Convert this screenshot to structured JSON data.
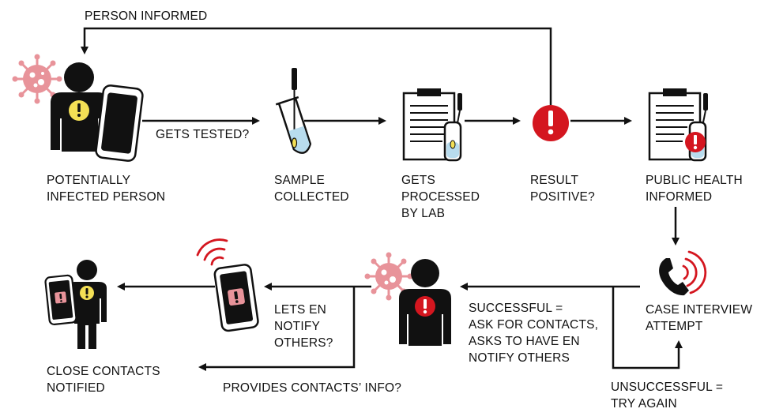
{
  "colors": {
    "line": "#111111",
    "virus": "#e8939a",
    "alert_red": "#d4161f",
    "alert_yellow": "#f3df55",
    "tube_liquid": "#b8dcee"
  },
  "flow_labels": {
    "person_informed": "PERSON INFORMED",
    "gets_tested": "GETS TESTED?",
    "provides_contacts": "PROVIDES CONTACTS’ INFO?",
    "unsuccessful": [
      "UNSUCCESSFUL =",
      "TRY AGAIN"
    ]
  },
  "nodes": {
    "infected_person": {
      "label": [
        "POTENTIALLY",
        "INFECTED PERSON"
      ],
      "icon": "infected-person-with-phone-icon"
    },
    "sample_collected": {
      "label": [
        "SAMPLE",
        "COLLECTED"
      ],
      "icon": "test-tube-swab-icon"
    },
    "lab_processing": {
      "label": [
        "GETS",
        "PROCESSED",
        "BY LAB"
      ],
      "icon": "clipboard-test-tube-icon"
    },
    "result_positive": {
      "label": [
        "RESULT",
        "POSITIVE?"
      ],
      "icon": "red-alert-icon"
    },
    "public_health": {
      "label": [
        "PUBLIC HEALTH",
        "INFORMED"
      ],
      "icon": "clipboard-alert-icon"
    },
    "case_interview": {
      "label": [
        "CASE INTERVIEW",
        "ATTEMPT"
      ],
      "icon": "phone-ringing-icon"
    },
    "successful": {
      "label": [
        "SUCCESSFUL =",
        "ASK FOR CONTACTS,",
        "ASKS TO HAVE EN",
        "NOTIFY OTHERS"
      ],
      "icon": "positive-person-icon"
    },
    "en_notify": {
      "label": [
        "LETS EN",
        "NOTIFY",
        "OTHERS?"
      ],
      "icon": "phone-alert-ringing-icon"
    },
    "close_contacts": {
      "label": [
        "CLOSE CONTACTS",
        "NOTIFIED"
      ],
      "icon": "notified-person-with-phone-icon"
    }
  }
}
